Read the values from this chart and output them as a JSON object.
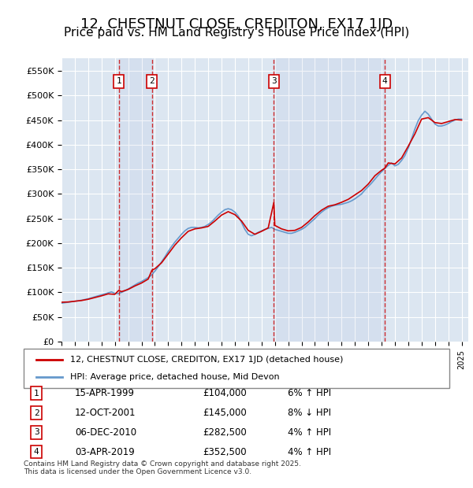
{
  "title": "12, CHESTNUT CLOSE, CREDITON, EX17 1JD",
  "subtitle": "Price paid vs. HM Land Registry's House Price Index (HPI)",
  "title_fontsize": 13,
  "subtitle_fontsize": 11,
  "ylabel": "",
  "ylim": [
    0,
    575000
  ],
  "yticks": [
    0,
    50000,
    100000,
    150000,
    200000,
    250000,
    300000,
    350000,
    400000,
    450000,
    500000,
    550000
  ],
  "ytick_labels": [
    "£0",
    "£50K",
    "£100K",
    "£150K",
    "£200K",
    "£250K",
    "£300K",
    "£350K",
    "£400K",
    "£450K",
    "£500K",
    "£550K"
  ],
  "xlim_start": 1995.0,
  "xlim_end": 2025.5,
  "bg_color": "#ffffff",
  "plot_bg_color": "#dce6f1",
  "grid_color": "#ffffff",
  "transactions": [
    {
      "num": 1,
      "date": "15-APR-1999",
      "price": 104000,
      "pct": "6%",
      "dir": "↑",
      "year": 1999.29
    },
    {
      "num": 2,
      "date": "12-OCT-2001",
      "price": 145000,
      "pct": "8%",
      "dir": "↓",
      "year": 2001.78
    },
    {
      "num": 3,
      "date": "06-DEC-2010",
      "price": 282500,
      "pct": "4%",
      "dir": "↑",
      "year": 2010.92
    },
    {
      "num": 4,
      "date": "03-APR-2019",
      "price": 352500,
      "pct": "4%",
      "dir": "↑",
      "year": 2019.25
    }
  ],
  "red_line_color": "#cc0000",
  "blue_line_color": "#6699cc",
  "vline_color": "#cc0000",
  "shade_color": "#dce6f1",
  "legend_label_red": "12, CHESTNUT CLOSE, CREDITON, EX17 1JD (detached house)",
  "legend_label_blue": "HPI: Average price, detached house, Mid Devon",
  "footnote": "Contains HM Land Registry data © Crown copyright and database right 2025.\nThis data is licensed under the Open Government Licence v3.0.",
  "hpi_years": [
    1995.0,
    1995.25,
    1995.5,
    1995.75,
    1996.0,
    1996.25,
    1996.5,
    1996.75,
    1997.0,
    1997.25,
    1997.5,
    1997.75,
    1998.0,
    1998.25,
    1998.5,
    1998.75,
    1999.0,
    1999.25,
    1999.5,
    1999.75,
    2000.0,
    2000.25,
    2000.5,
    2000.75,
    2001.0,
    2001.25,
    2001.5,
    2001.75,
    2002.0,
    2002.25,
    2002.5,
    2002.75,
    2003.0,
    2003.25,
    2003.5,
    2003.75,
    2004.0,
    2004.25,
    2004.5,
    2004.75,
    2005.0,
    2005.25,
    2005.5,
    2005.75,
    2006.0,
    2006.25,
    2006.5,
    2006.75,
    2007.0,
    2007.25,
    2007.5,
    2007.75,
    2008.0,
    2008.25,
    2008.5,
    2008.75,
    2009.0,
    2009.25,
    2009.5,
    2009.75,
    2010.0,
    2010.25,
    2010.5,
    2010.75,
    2011.0,
    2011.25,
    2011.5,
    2011.75,
    2012.0,
    2012.25,
    2012.5,
    2012.75,
    2013.0,
    2013.25,
    2013.5,
    2013.75,
    2014.0,
    2014.25,
    2014.5,
    2014.75,
    2015.0,
    2015.25,
    2015.5,
    2015.75,
    2016.0,
    2016.25,
    2016.5,
    2016.75,
    2017.0,
    2017.25,
    2017.5,
    2017.75,
    2018.0,
    2018.25,
    2018.5,
    2018.75,
    2019.0,
    2019.25,
    2019.5,
    2019.75,
    2020.0,
    2020.25,
    2020.5,
    2020.75,
    2021.0,
    2021.25,
    2021.5,
    2021.75,
    2022.0,
    2022.25,
    2022.5,
    2022.75,
    2023.0,
    2023.25,
    2023.5,
    2023.75,
    2024.0,
    2024.25,
    2024.5,
    2024.75,
    2025.0
  ],
  "hpi_values": [
    78000,
    79000,
    80000,
    81000,
    82000,
    83000,
    84000,
    85500,
    87000,
    89000,
    91000,
    93000,
    95000,
    97000,
    99000,
    101000,
    98000,
    97500,
    100000,
    103000,
    107000,
    111000,
    115000,
    119000,
    122000,
    126000,
    130000,
    135000,
    143000,
    152000,
    162000,
    172000,
    183000,
    193000,
    202000,
    210000,
    218000,
    225000,
    230000,
    232000,
    232000,
    231000,
    232000,
    234000,
    238000,
    243000,
    250000,
    257000,
    263000,
    268000,
    270000,
    268000,
    263000,
    255000,
    242000,
    228000,
    218000,
    215000,
    218000,
    222000,
    225000,
    228000,
    230000,
    232000,
    228000,
    226000,
    224000,
    222000,
    220000,
    220000,
    222000,
    225000,
    228000,
    232000,
    238000,
    244000,
    250000,
    257000,
    263000,
    268000,
    272000,
    275000,
    277000,
    278000,
    279000,
    281000,
    283000,
    286000,
    290000,
    295000,
    300000,
    308000,
    315000,
    322000,
    330000,
    338000,
    345000,
    352000,
    358000,
    363000,
    357000,
    360000,
    368000,
    378000,
    393000,
    412000,
    432000,
    449000,
    460000,
    468000,
    462000,
    452000,
    442000,
    438000,
    438000,
    440000,
    443000,
    447000,
    450000,
    452000,
    452000
  ],
  "red_years": [
    1995.0,
    1995.5,
    1996.0,
    1996.5,
    1997.0,
    1997.5,
    1998.0,
    1998.5,
    1999.0,
    1999.29,
    1999.5,
    2000.0,
    2000.5,
    2001.0,
    2001.5,
    2001.78,
    2002.0,
    2002.5,
    2003.0,
    2003.5,
    2004.0,
    2004.5,
    2005.0,
    2005.5,
    2006.0,
    2006.5,
    2007.0,
    2007.5,
    2008.0,
    2008.5,
    2009.0,
    2009.5,
    2010.0,
    2010.5,
    2010.92,
    2011.0,
    2011.5,
    2012.0,
    2012.5,
    2013.0,
    2013.5,
    2014.0,
    2014.5,
    2015.0,
    2015.5,
    2016.0,
    2016.5,
    2017.0,
    2017.5,
    2018.0,
    2018.5,
    2019.0,
    2019.25,
    2019.5,
    2020.0,
    2020.5,
    2021.0,
    2021.5,
    2022.0,
    2022.5,
    2023.0,
    2023.5,
    2024.0,
    2024.5,
    2025.0
  ],
  "red_values": [
    80000,
    80500,
    82000,
    83500,
    86000,
    89500,
    93000,
    97000,
    96000,
    104000,
    101500,
    106000,
    113000,
    119000,
    127000,
    145000,
    148000,
    160000,
    178000,
    196000,
    211000,
    224000,
    229000,
    231000,
    234000,
    245000,
    257000,
    264000,
    258000,
    245000,
    226000,
    218000,
    224000,
    231000,
    282500,
    236000,
    229000,
    225000,
    226000,
    232000,
    243000,
    256000,
    267000,
    275000,
    278000,
    283000,
    289000,
    298000,
    307000,
    320000,
    337000,
    348000,
    352500,
    363000,
    361000,
    373000,
    397000,
    422000,
    452000,
    455000,
    445000,
    443000,
    447000,
    451000,
    450000
  ]
}
